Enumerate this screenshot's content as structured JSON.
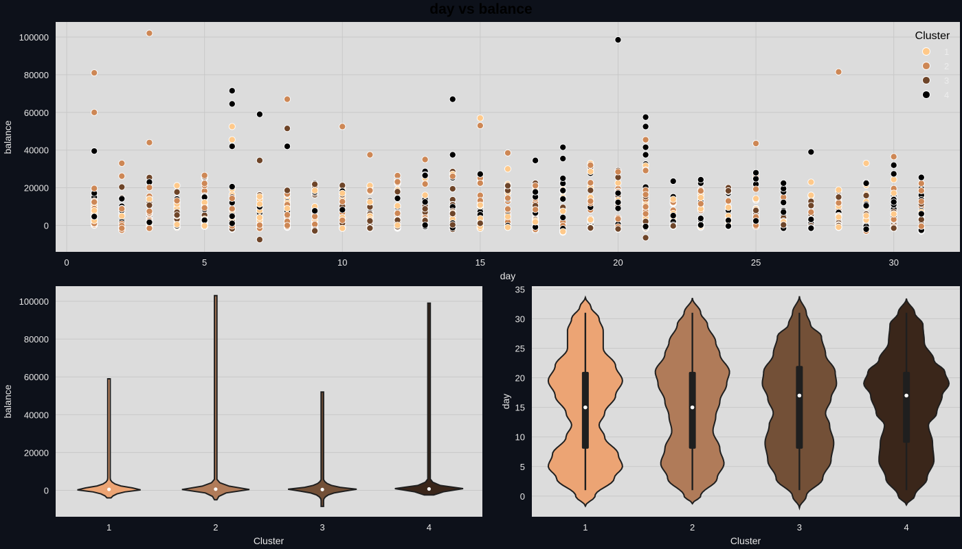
{
  "title": "day vs balance",
  "colors": {
    "background": "#0d111a",
    "plot_bg": "#dcdcdc",
    "grid": "#c8c8c8",
    "text_light": "#e6e6e6",
    "text_dark": "#000000",
    "cluster_1": "#ffc98a",
    "cluster_2": "#cd8755",
    "cluster_3": "#6e4529",
    "cluster_4": "#000000",
    "violin_1": "#eca474",
    "violin_2": "#b07b59",
    "violin_3": "#735037",
    "violin_4": "#3a261a"
  },
  "chart_data": [
    {
      "type": "scatter",
      "xlabel": "day",
      "ylabel": "balance",
      "xlim": [
        -0.4,
        32.4
      ],
      "ylim": [
        -14000,
        108000
      ],
      "xticks": [
        0,
        5,
        10,
        15,
        20,
        25,
        30
      ],
      "yticks": [
        0,
        20000,
        40000,
        60000,
        80000,
        100000
      ],
      "grid": true,
      "legend": {
        "title": "Cluster",
        "position": "top-right",
        "entries": [
          "1",
          "2",
          "3",
          "4"
        ]
      },
      "outliers": [
        {
          "x": 1,
          "y": 81000,
          "cluster": "2"
        },
        {
          "x": 1,
          "y": 60000,
          "cluster": "2"
        },
        {
          "x": 1,
          "y": 39500,
          "cluster": "4"
        },
        {
          "x": 2,
          "y": 33000,
          "cluster": "2"
        },
        {
          "x": 3,
          "y": 102000,
          "cluster": "2"
        },
        {
          "x": 3,
          "y": 44000,
          "cluster": "2"
        },
        {
          "x": 6,
          "y": 71500,
          "cluster": "4"
        },
        {
          "x": 6,
          "y": 64500,
          "cluster": "4"
        },
        {
          "x": 6,
          "y": 52500,
          "cluster": "1"
        },
        {
          "x": 6,
          "y": 45500,
          "cluster": "1"
        },
        {
          "x": 6,
          "y": 42000,
          "cluster": "4"
        },
        {
          "x": 7,
          "y": 59000,
          "cluster": "4"
        },
        {
          "x": 7,
          "y": 34500,
          "cluster": "3"
        },
        {
          "x": 7,
          "y": -7500,
          "cluster": "3"
        },
        {
          "x": 8,
          "y": 67000,
          "cluster": "2"
        },
        {
          "x": 8,
          "y": 51500,
          "cluster": "3"
        },
        {
          "x": 8,
          "y": 42000,
          "cluster": "4"
        },
        {
          "x": 10,
          "y": 52500,
          "cluster": "2"
        },
        {
          "x": 11,
          "y": 37500,
          "cluster": "2"
        },
        {
          "x": 13,
          "y": 35000,
          "cluster": "2"
        },
        {
          "x": 14,
          "y": 67000,
          "cluster": "4"
        },
        {
          "x": 14,
          "y": 37500,
          "cluster": "4"
        },
        {
          "x": 15,
          "y": 57000,
          "cluster": "1"
        },
        {
          "x": 15,
          "y": 53000,
          "cluster": "2"
        },
        {
          "x": 16,
          "y": 38500,
          "cluster": "2"
        },
        {
          "x": 16,
          "y": 30000,
          "cluster": "1"
        },
        {
          "x": 17,
          "y": 34500,
          "cluster": "4"
        },
        {
          "x": 18,
          "y": 41500,
          "cluster": "4"
        },
        {
          "x": 18,
          "y": 35500,
          "cluster": "4"
        },
        {
          "x": 19,
          "y": 32000,
          "cluster": "2"
        },
        {
          "x": 20,
          "y": 98500,
          "cluster": "4"
        },
        {
          "x": 21,
          "y": 57500,
          "cluster": "4"
        },
        {
          "x": 21,
          "y": 52500,
          "cluster": "4"
        },
        {
          "x": 21,
          "y": 45500,
          "cluster": "2"
        },
        {
          "x": 21,
          "y": 41500,
          "cluster": "4"
        },
        {
          "x": 21,
          "y": 37500,
          "cluster": "4"
        },
        {
          "x": 21,
          "y": -6500,
          "cluster": "3"
        },
        {
          "x": 22,
          "y": 23500,
          "cluster": "4"
        },
        {
          "x": 25,
          "y": 43500,
          "cluster": "2"
        },
        {
          "x": 27,
          "y": 39000,
          "cluster": "4"
        },
        {
          "x": 27,
          "y": 23000,
          "cluster": "1"
        },
        {
          "x": 28,
          "y": 81500,
          "cluster": "2"
        },
        {
          "x": 29,
          "y": 33000,
          "cluster": "1"
        },
        {
          "x": 30,
          "y": 36500,
          "cluster": "2"
        },
        {
          "x": 30,
          "y": 32000,
          "cluster": "4"
        },
        {
          "x": 31,
          "y": 25500,
          "cluster": "4"
        }
      ],
      "column_max": [
        21000,
        26500,
        27500,
        22500,
        27000,
        25500,
        18000,
        22000,
        23000,
        23000,
        28000,
        28000,
        29000,
        32000,
        29500,
        24000,
        26000,
        30000,
        33000,
        29500,
        33000,
        16000,
        26500,
        21500,
        29500,
        24000,
        16500,
        24500,
        24000,
        28500,
        25500
      ],
      "column_min": [
        0,
        -2500,
        -1500,
        -1000,
        -500,
        -2000,
        -1500,
        -1000,
        -3000,
        -1500,
        -1500,
        -1500,
        -500,
        -2000,
        -1500,
        -1000,
        -2500,
        -3500,
        -1500,
        -2000,
        -1500,
        -500,
        -1000,
        -500,
        -500,
        -1500,
        -1500,
        -1000,
        -3000,
        -1500,
        -3000
      ]
    },
    {
      "type": "violin",
      "xlabel": "Cluster",
      "ylabel": "balance",
      "categories": [
        "1",
        "2",
        "3",
        "4"
      ],
      "ylim": [
        -14000,
        108000
      ],
      "yticks": [
        0,
        20000,
        40000,
        60000,
        80000,
        100000
      ],
      "series": [
        {
          "category": "1",
          "min": -4000,
          "max": 59000,
          "median": 500
        },
        {
          "category": "2",
          "min": -5000,
          "max": 103000,
          "median": 600
        },
        {
          "category": "3",
          "min": -8500,
          "max": 52000,
          "median": 400
        },
        {
          "category": "4",
          "min": -2500,
          "max": 99000,
          "median": 700
        }
      ]
    },
    {
      "type": "violin",
      "xlabel": "Cluster",
      "ylabel": "day",
      "categories": [
        "1",
        "2",
        "3",
        "4"
      ],
      "ylim": [
        -3.5,
        35.5
      ],
      "yticks": [
        0,
        5,
        10,
        15,
        20,
        25,
        30,
        35
      ],
      "series": [
        {
          "category": "1",
          "min": 1,
          "max": 31,
          "q1": 8,
          "median": 15,
          "q3": 21
        },
        {
          "category": "2",
          "min": 1,
          "max": 31,
          "q1": 8,
          "median": 15,
          "q3": 21
        },
        {
          "category": "3",
          "min": 1,
          "max": 31,
          "q1": 8,
          "median": 17,
          "q3": 22
        },
        {
          "category": "4",
          "min": 1,
          "max": 31,
          "q1": 9,
          "median": 17,
          "q3": 21
        }
      ]
    }
  ]
}
